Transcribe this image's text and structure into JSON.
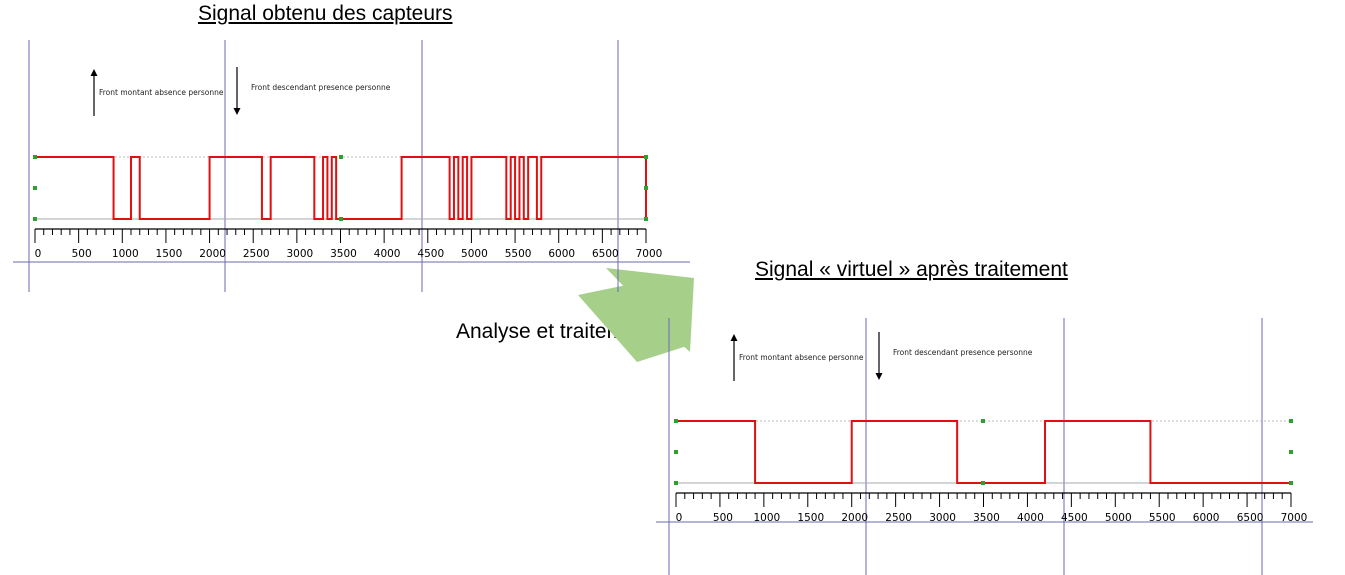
{
  "titles": {
    "top": "Signal obtenu des capteurs",
    "bottom": "Signal « virtuel » après traitement"
  },
  "process_label": "Analyse et traitement",
  "colors": {
    "signal": "#e01010",
    "guide": "#6a6ab0",
    "marker": "#2ea02e",
    "arrow": "#a6d08a"
  },
  "chart_data": [
    {
      "type": "line",
      "title": "Signal obtenu des capteurs",
      "step": true,
      "xlim": [
        0,
        7000
      ],
      "x_ticks": [
        0,
        500,
        1000,
        1500,
        2000,
        2500,
        3000,
        3500,
        4000,
        4500,
        5000,
        5500,
        6000,
        6500,
        7000
      ],
      "annotations": {
        "rising": "Front montant absence personne",
        "falling": "Front descendant presence personne"
      },
      "series": [
        {
          "x": [
            0,
            900,
            1100,
            1200,
            2000,
            2600,
            2700,
            3200,
            3300,
            3350,
            3400,
            3450,
            4200,
            4750,
            4800,
            4850,
            4900,
            4950,
            5000,
            5400,
            5450,
            5500,
            5550,
            5600,
            5650,
            5750,
            5800,
            7000
          ],
          "y": [
            1,
            0,
            1,
            0,
            1,
            0,
            1,
            0,
            1,
            0,
            1,
            0,
            1,
            0,
            1,
            0,
            1,
            0,
            1,
            0,
            1,
            0,
            1,
            0,
            1,
            0,
            1,
            0
          ]
        }
      ]
    },
    {
      "type": "line",
      "title": "Signal « virtuel » après traitement",
      "step": true,
      "xlim": [
        0,
        7000
      ],
      "x_ticks": [
        0,
        500,
        1000,
        1500,
        2000,
        2500,
        3000,
        3500,
        4000,
        4500,
        5000,
        5500,
        6000,
        6500,
        7000
      ],
      "annotations": {
        "rising": "Front montant absence personne",
        "falling": "Front descendant presence personne"
      },
      "series": [
        {
          "x": [
            0,
            900,
            2000,
            3200,
            4200,
            5400,
            7000
          ],
          "y": [
            1,
            0,
            1,
            0,
            1,
            0,
            0
          ]
        }
      ]
    }
  ]
}
